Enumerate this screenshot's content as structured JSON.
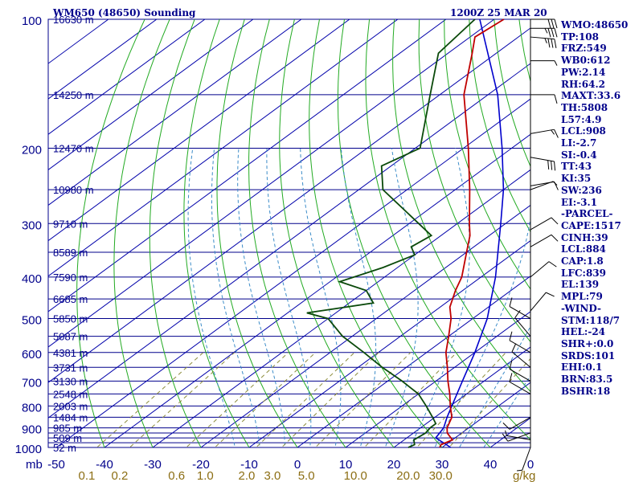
{
  "header": {
    "station": "WM650 (48650) Sounding",
    "time": "1200Z 25 MAR 20"
  },
  "chart_data": {
    "type": "line",
    "title": "WM650 (48650) Sounding",
    "pressure_levels": [
      100,
      200,
      300,
      400,
      500,
      600,
      700,
      800,
      900,
      1000
    ],
    "extra_pressure_lines": [
      150,
      250,
      350,
      450,
      550,
      650,
      750,
      850,
      925,
      950,
      975
    ],
    "height_labels": [
      {
        "p": 100,
        "label": "16630 m"
      },
      {
        "p": 150,
        "label": "14250 m"
      },
      {
        "p": 200,
        "label": "12470 m"
      },
      {
        "p": 250,
        "label": "10980 m"
      },
      {
        "p": 300,
        "label": "9710 m"
      },
      {
        "p": 350,
        "label": "8589 m"
      },
      {
        "p": 400,
        "label": "7590 m"
      },
      {
        "p": 450,
        "label": "6685 m"
      },
      {
        "p": 500,
        "label": "5850 m"
      },
      {
        "p": 550,
        "label": "5087 m"
      },
      {
        "p": 600,
        "label": "4381 m"
      },
      {
        "p": 650,
        "label": "3731 m"
      },
      {
        "p": 700,
        "label": "3130 m"
      },
      {
        "p": 750,
        "label": "2548 m"
      },
      {
        "p": 800,
        "label": "2003 m"
      },
      {
        "p": 850,
        "label": "1484 m"
      },
      {
        "p": 900,
        "label": "985 m"
      },
      {
        "p": 950,
        "label": "509 m"
      },
      {
        "p": 1000,
        "label": "52 m"
      }
    ],
    "x_ticks": [
      -50,
      -40,
      -30,
      -20,
      -10,
      0,
      10,
      20,
      30,
      40
    ],
    "x_tick_labels": [
      "-50",
      "-40",
      "-30",
      "-20",
      "-10",
      "0",
      "10",
      "20",
      "30",
      "40"
    ],
    "x_unit_label": "mb",
    "mixing_ratio_labels": [
      "0.1",
      "0.2",
      "0.6",
      "1.0",
      "2.0",
      "3.0",
      "5.0",
      "10.0",
      "20.0",
      "30.0"
    ],
    "mixing_ratio_unit": "g/kg",
    "temperature": [
      {
        "p": 1000,
        "t": 29.5
      },
      {
        "p": 985,
        "t": 29
      },
      {
        "p": 960,
        "t": 30
      },
      {
        "p": 925,
        "t": 27
      },
      {
        "p": 900,
        "t": 25.5
      },
      {
        "p": 850,
        "t": 23.5
      },
      {
        "p": 800,
        "t": 20
      },
      {
        "p": 750,
        "t": 16.5
      },
      {
        "p": 700,
        "t": 12.5
      },
      {
        "p": 650,
        "t": 8.5
      },
      {
        "p": 600,
        "t": 4
      },
      {
        "p": 550,
        "t": 0
      },
      {
        "p": 500,
        "t": -4.5
      },
      {
        "p": 470,
        "t": -8
      },
      {
        "p": 430,
        "t": -11.5
      },
      {
        "p": 400,
        "t": -14
      },
      {
        "p": 370,
        "t": -17.5
      },
      {
        "p": 350,
        "t": -20
      },
      {
        "p": 320,
        "t": -24
      },
      {
        "p": 300,
        "t": -27.5
      },
      {
        "p": 250,
        "t": -37
      },
      {
        "p": 200,
        "t": -49
      },
      {
        "p": 150,
        "t": -65
      },
      {
        "p": 120,
        "t": -75
      },
      {
        "p": 110,
        "t": -79
      },
      {
        "p": 100,
        "t": -78
      }
    ],
    "dewpoint": [
      {
        "p": 1000,
        "t": 23
      },
      {
        "p": 985,
        "t": 23.5
      },
      {
        "p": 960,
        "t": 22
      },
      {
        "p": 925,
        "t": 22.5
      },
      {
        "p": 900,
        "t": 22
      },
      {
        "p": 880,
        "t": 22
      },
      {
        "p": 850,
        "t": 19.5
      },
      {
        "p": 800,
        "t": 15
      },
      {
        "p": 750,
        "t": 10
      },
      {
        "p": 700,
        "t": 3
      },
      {
        "p": 650,
        "t": -5
      },
      {
        "p": 600,
        "t": -13
      },
      {
        "p": 550,
        "t": -22
      },
      {
        "p": 500,
        "t": -30
      },
      {
        "p": 485,
        "t": -36
      },
      {
        "p": 460,
        "t": -25
      },
      {
        "p": 430,
        "t": -30
      },
      {
        "p": 410,
        "t": -38
      },
      {
        "p": 380,
        "t": -33
      },
      {
        "p": 355,
        "t": -30
      },
      {
        "p": 340,
        "t": -33
      },
      {
        "p": 320,
        "t": -32
      },
      {
        "p": 300,
        "t": -38
      },
      {
        "p": 250,
        "t": -55
      },
      {
        "p": 220,
        "t": -62
      },
      {
        "p": 200,
        "t": -59
      },
      {
        "p": 150,
        "t": -72
      },
      {
        "p": 120,
        "t": -82
      },
      {
        "p": 100,
        "t": -84
      }
    ],
    "parcel": [
      {
        "p": 1000,
        "t": 31.8
      },
      {
        "p": 950,
        "t": 26
      },
      {
        "p": 900,
        "t": 24.8
      },
      {
        "p": 850,
        "t": 22.5
      },
      {
        "p": 700,
        "t": 15.5
      },
      {
        "p": 600,
        "t": 10
      },
      {
        "p": 500,
        "t": 3
      },
      {
        "p": 400,
        "t": -7
      },
      {
        "p": 300,
        "t": -21
      },
      {
        "p": 250,
        "t": -30
      },
      {
        "p": 200,
        "t": -42
      },
      {
        "p": 150,
        "t": -58
      },
      {
        "p": 100,
        "t": -83
      }
    ],
    "wind_barbs": [
      {
        "p": 100,
        "dir": 90,
        "spd": 30
      },
      {
        "p": 105,
        "dir": 90,
        "spd": 35
      },
      {
        "p": 110,
        "dir": 95,
        "spd": 35
      },
      {
        "p": 125,
        "dir": 90,
        "spd": 5
      },
      {
        "p": 150,
        "dir": 90,
        "spd": 10
      },
      {
        "p": 185,
        "dir": 80,
        "spd": 15
      },
      {
        "p": 210,
        "dir": 100,
        "spd": 30
      },
      {
        "p": 245,
        "dir": 80,
        "spd": 10
      },
      {
        "p": 250,
        "dir": 70,
        "spd": 5
      },
      {
        "p": 310,
        "dir": 60,
        "spd": 10
      },
      {
        "p": 340,
        "dir": 60,
        "spd": 10
      },
      {
        "p": 400,
        "dir": 50,
        "spd": 10
      },
      {
        "p": 480,
        "dir": 40,
        "spd": 10
      },
      {
        "p": 500,
        "dir": 300,
        "spd": 10
      },
      {
        "p": 550,
        "dir": 320,
        "spd": 10
      },
      {
        "p": 600,
        "dir": 300,
        "spd": 10
      },
      {
        "p": 650,
        "dir": 310,
        "spd": 10
      },
      {
        "p": 700,
        "dir": 300,
        "spd": 10
      },
      {
        "p": 750,
        "dir": 300,
        "spd": 10
      },
      {
        "p": 850,
        "dir": 240,
        "spd": 10
      },
      {
        "p": 925,
        "dir": 250,
        "spd": 10
      },
      {
        "p": 960,
        "dir": 280,
        "spd": 5
      },
      {
        "p": 1000,
        "dir": 200,
        "spd": 5
      }
    ]
  },
  "stats": [
    "WMO:48650",
    "TP:108",
    "FRZ:549",
    "WB0:612",
    "PW:2.14",
    "RH:64.2",
    "MAXT:33.6",
    "TH:5808",
    "L57:4.9",
    "LCL:908",
    "LI:-2.7",
    "SI:-0.4",
    "TT:43",
    "KI:35",
    "SW:236",
    "EI:-3.1",
    "-PARCEL-",
    "CAPE:1517",
    "CINH:39",
    "LCL:884",
    "CAP:1.8",
    "LFC:839",
    "EL:139",
    "MPL:79",
    "-WIND-",
    "STM:118/7",
    "HEL:-24",
    "SHR+:0.0",
    "SRDS:101",
    "EHI:0.1",
    "BRN:83.5",
    "BSHR:18"
  ],
  "colors": {
    "frame": "#00008b",
    "isobar": "#00008b",
    "isotherm": "#0000aa",
    "dry_adiabat": "#22aa22",
    "moist_adiabat": "#3c8cc8",
    "mixing_ratio": "#8c8c3c",
    "temperature": "#c00000",
    "dewpoint": "#0b4a0b",
    "parcel": "#0000cc",
    "wind": "#000000",
    "mixing_label": "#8c6e14"
  }
}
